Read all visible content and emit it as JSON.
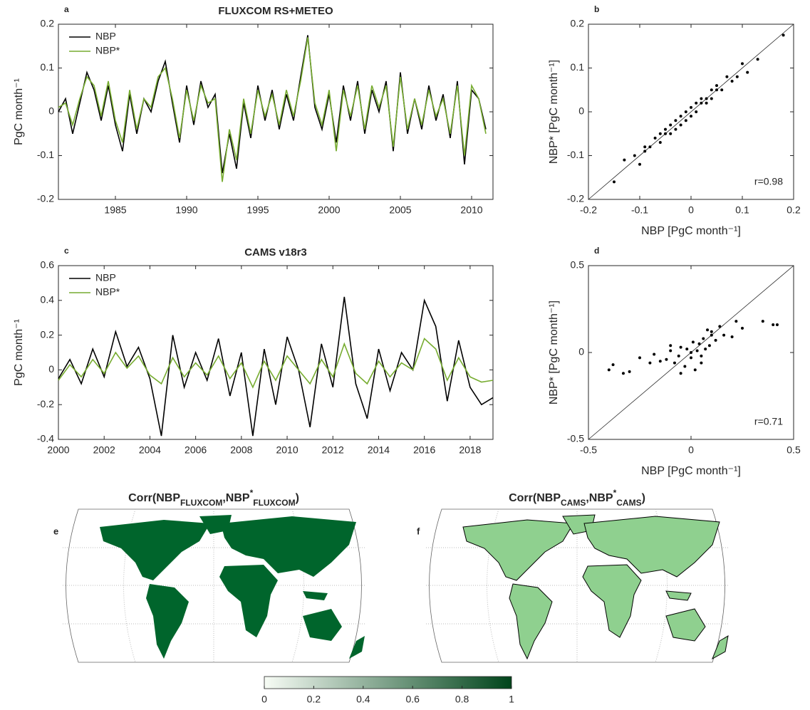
{
  "chart_data": [
    {
      "type": "line",
      "panel": "a",
      "title": "FLUXCOM RS+METEO",
      "ylabel": "PgC month⁻¹",
      "x": [
        1981,
        1981.5,
        1982,
        1982.5,
        1983,
        1983.5,
        1984,
        1984.5,
        1985,
        1985.5,
        1986,
        1986.5,
        1987,
        1987.5,
        1988,
        1988.5,
        1989,
        1989.5,
        1990,
        1990.5,
        1991,
        1991.5,
        1992,
        1992.5,
        1993,
        1993.5,
        1994,
        1994.5,
        1995,
        1995.5,
        1996,
        1996.5,
        1997,
        1997.5,
        1998,
        1998.5,
        1999,
        1999.5,
        2000,
        2000.5,
        2001,
        2001.5,
        2002,
        2002.5,
        2003,
        2003.5,
        2004,
        2004.5,
        2005,
        2005.5,
        2006,
        2006.5,
        2007,
        2007.5,
        2008,
        2008.5,
        2009,
        2009.5,
        2010,
        2010.5,
        2011
      ],
      "series": [
        {
          "name": "NBP",
          "color": "#000000",
          "values": [
            0.0,
            0.03,
            -0.05,
            0.02,
            0.09,
            0.05,
            -0.02,
            0.06,
            -0.03,
            -0.09,
            0.04,
            -0.05,
            0.03,
            0.0,
            0.07,
            0.115,
            0.02,
            -0.07,
            0.06,
            -0.03,
            0.07,
            0.01,
            0.04,
            -0.14,
            -0.05,
            -0.13,
            0.02,
            -0.06,
            0.06,
            -0.02,
            0.05,
            -0.04,
            0.04,
            -0.02,
            0.08,
            0.175,
            0.01,
            -0.04,
            0.04,
            -0.07,
            0.06,
            -0.02,
            0.07,
            -0.05,
            0.05,
            0.0,
            0.07,
            -0.09,
            0.09,
            -0.05,
            0.03,
            -0.04,
            0.06,
            -0.02,
            0.04,
            -0.06,
            0.07,
            -0.12,
            0.05,
            0.03,
            -0.04
          ]
        },
        {
          "name": "NBP*",
          "color": "#77ac30",
          "values": [
            0.01,
            0.02,
            -0.03,
            0.03,
            0.08,
            0.06,
            -0.01,
            0.07,
            -0.02,
            -0.07,
            0.05,
            -0.04,
            0.03,
            0.01,
            0.08,
            0.1,
            0.03,
            -0.06,
            0.05,
            -0.02,
            0.06,
            0.02,
            0.03,
            -0.16,
            -0.04,
            -0.11,
            0.03,
            -0.05,
            0.05,
            -0.01,
            0.04,
            -0.03,
            0.05,
            -0.01,
            0.07,
            0.17,
            0.02,
            -0.03,
            0.05,
            -0.09,
            0.05,
            -0.01,
            0.06,
            -0.04,
            0.06,
            0.01,
            0.06,
            -0.08,
            0.08,
            -0.04,
            0.03,
            -0.03,
            0.05,
            -0.01,
            0.03,
            -0.05,
            0.06,
            -0.1,
            0.06,
            0.03,
            -0.05
          ]
        }
      ],
      "xlim": [
        1981,
        2011.5
      ],
      "xticks": [
        1985,
        1990,
        1995,
        2000,
        2005,
        2010
      ],
      "ylim": [
        -0.2,
        0.2
      ],
      "yticks": [
        -0.2,
        -0.1,
        0,
        0.1,
        0.2
      ]
    },
    {
      "type": "scatter",
      "panel": "b",
      "xlabel": "NBP [PgC month⁻¹]",
      "ylabel": "NBP* [PgC month⁻¹]",
      "annotation": "r=0.98",
      "color": "#000000",
      "x": [
        -0.15,
        -0.13,
        -0.11,
        -0.1,
        -0.09,
        -0.08,
        -0.07,
        -0.06,
        -0.06,
        -0.05,
        -0.05,
        -0.04,
        -0.04,
        -0.03,
        -0.03,
        -0.02,
        -0.02,
        -0.01,
        -0.01,
        0,
        0,
        0.01,
        0.01,
        0.02,
        0.02,
        0.03,
        0.03,
        0.04,
        0.04,
        0.05,
        0.05,
        0.06,
        0.07,
        0.08,
        0.09,
        0.1,
        0.11,
        0.13,
        0.18,
        -0.09
      ],
      "values": [
        -0.16,
        -0.11,
        -0.1,
        -0.12,
        -0.08,
        -0.08,
        -0.06,
        -0.05,
        -0.07,
        -0.05,
        -0.04,
        -0.03,
        -0.05,
        -0.02,
        -0.04,
        -0.01,
        -0.03,
        0.0,
        -0.02,
        0.01,
        -0.01,
        0.02,
        0.0,
        0.02,
        0.03,
        0.03,
        0.02,
        0.05,
        0.03,
        0.05,
        0.06,
        0.05,
        0.08,
        0.07,
        0.08,
        0.11,
        0.09,
        0.12,
        0.175,
        -0.09
      ],
      "xlim": [
        -0.2,
        0.2
      ],
      "xticks": [
        -0.2,
        -0.1,
        0,
        0.1,
        0.2
      ],
      "ylim": [
        -0.2,
        0.2
      ],
      "yticks": [
        -0.2,
        -0.1,
        0,
        0.1,
        0.2
      ]
    },
    {
      "type": "line",
      "panel": "c",
      "title": "CAMS v18r3",
      "ylabel": "PgC month⁻¹",
      "x": [
        2000,
        2000.5,
        2001,
        2001.5,
        2002,
        2002.5,
        2003,
        2003.5,
        2004,
        2004.5,
        2005,
        2005.5,
        2006,
        2006.5,
        2007,
        2007.5,
        2008,
        2008.5,
        2009,
        2009.5,
        2010,
        2010.5,
        2011,
        2011.5,
        2012,
        2012.5,
        2013,
        2013.5,
        2014,
        2014.5,
        2015,
        2015.5,
        2016,
        2016.5,
        2017,
        2017.5,
        2018,
        2018.5,
        2019
      ],
      "series": [
        {
          "name": "NBP",
          "color": "#000000",
          "values": [
            -0.05,
            0.06,
            -0.08,
            0.12,
            -0.04,
            0.22,
            0.02,
            0.13,
            -0.05,
            -0.38,
            0.2,
            -0.1,
            0.1,
            -0.06,
            0.18,
            -0.15,
            0.1,
            -0.38,
            0.12,
            -0.2,
            0.19,
            0.0,
            -0.33,
            0.15,
            -0.1,
            0.42,
            -0.08,
            -0.28,
            0.12,
            -0.12,
            0.1,
            0.0,
            0.4,
            0.25,
            -0.18,
            0.17,
            -0.1,
            -0.2,
            -0.16
          ]
        },
        {
          "name": "NBP*",
          "color": "#77ac30",
          "values": [
            -0.06,
            0.03,
            -0.04,
            0.06,
            -0.02,
            0.1,
            0.01,
            0.08,
            -0.03,
            -0.08,
            0.07,
            -0.04,
            0.04,
            -0.03,
            0.08,
            -0.05,
            0.04,
            -0.1,
            0.05,
            -0.06,
            0.08,
            0.0,
            -0.08,
            0.06,
            -0.04,
            0.15,
            -0.02,
            -0.08,
            0.05,
            -0.04,
            0.04,
            0.0,
            0.18,
            0.12,
            -0.06,
            0.07,
            -0.04,
            -0.07,
            -0.06
          ]
        }
      ],
      "xlim": [
        2000,
        2019
      ],
      "xticks": [
        2000,
        2002,
        2004,
        2006,
        2008,
        2010,
        2012,
        2014,
        2016,
        2018
      ],
      "ylim": [
        -0.4,
        0.6
      ],
      "yticks": [
        -0.4,
        -0.2,
        0,
        0.2,
        0.4,
        0.6
      ]
    },
    {
      "type": "scatter",
      "panel": "d",
      "xlabel": "NBP [PgC month⁻¹]",
      "ylabel": "NBP* [PgC month⁻¹]",
      "annotation": "r=0.71",
      "color": "#000000",
      "x": [
        -0.4,
        -0.38,
        -0.33,
        -0.3,
        -0.25,
        -0.2,
        -0.18,
        -0.15,
        -0.12,
        -0.1,
        -0.08,
        -0.06,
        -0.05,
        -0.03,
        -0.02,
        0,
        0.01,
        0.02,
        0.03,
        0.04,
        0.05,
        0.06,
        0.07,
        0.08,
        0.09,
        0.1,
        0.12,
        0.14,
        0.16,
        0.2,
        0.22,
        0.25,
        0.35,
        0.4,
        0.42,
        -0.05,
        0.0,
        0.05,
        0.1,
        -0.1
      ],
      "values": [
        -0.1,
        -0.07,
        -0.12,
        -0.11,
        -0.03,
        -0.06,
        -0.01,
        -0.05,
        -0.04,
        0.01,
        -0.06,
        -0.02,
        0.03,
        -0.08,
        0.02,
        -0.03,
        0.06,
        -0.1,
        0.01,
        0.05,
        -0.02,
        0.08,
        0.02,
        0.13,
        0.04,
        0.1,
        0.07,
        0.15,
        0.1,
        0.09,
        0.18,
        0.14,
        0.18,
        0.16,
        0.16,
        -0.12,
        0.0,
        -0.06,
        0.12,
        0.04
      ],
      "xlim": [
        -0.5,
        0.5
      ],
      "xticks": [
        -0.5,
        0,
        0.5
      ],
      "ylim": [
        -0.5,
        0.5
      ],
      "yticks": [
        -0.5,
        0,
        0.5
      ]
    },
    {
      "type": "map",
      "panel": "e",
      "color": "#00652c",
      "coastlines": false,
      "title": [
        {
          "text": "Corr(NBP"
        },
        {
          "text": "FLUXCOM",
          "shift": "sub"
        },
        {
          "text": ",NBP"
        },
        {
          "text": "*",
          "shift": "super"
        },
        {
          "text": "FLUXCOM",
          "shift": "sub"
        },
        {
          "text": ")"
        }
      ]
    },
    {
      "type": "map",
      "panel": "f",
      "color": "#8fd08f",
      "coastlines": true,
      "title": [
        {
          "text": "Corr(NBP"
        },
        {
          "text": "CAMS",
          "shift": "sub"
        },
        {
          "text": ",NBP"
        },
        {
          "text": "*",
          "shift": "super"
        },
        {
          "text": "CAMS",
          "shift": "sub"
        },
        {
          "text": ")"
        }
      ]
    },
    {
      "type": "colorbar",
      "colors": [
        "#f7fcf5",
        "#00441b"
      ],
      "lim": [
        0,
        1
      ],
      "ticks": [
        0,
        0.2,
        0.4,
        0.6,
        0.8,
        1
      ]
    }
  ]
}
